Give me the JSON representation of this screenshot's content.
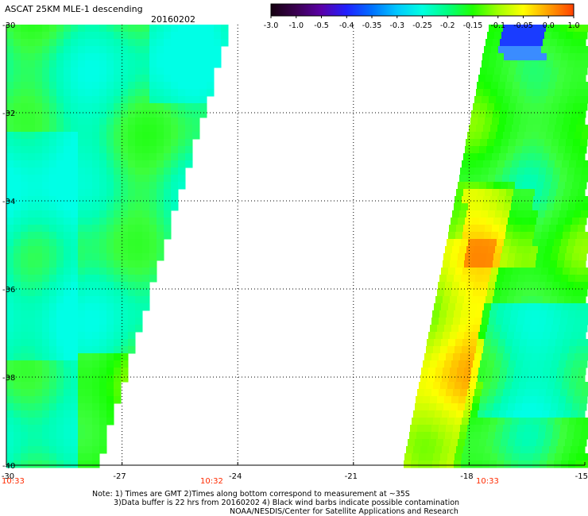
{
  "title": "ASCAT 25KM MLE-1 descending",
  "date": "20160202",
  "colorbar": {
    "labels": [
      "-3.0",
      "-1.0",
      "-0.5",
      "-0.4",
      "-0.35",
      "-0.3",
      "-0.25",
      "-0.2",
      "-0.15",
      "-0.1",
      "-0.05",
      "0.0",
      "1.0"
    ],
    "colors": [
      "#140010",
      "#3a0050",
      "#5a00a8",
      "#2020ff",
      "#0070ff",
      "#00c8ff",
      "#00ffe0",
      "#00ff80",
      "#20ff00",
      "#a0ff00",
      "#ffff00",
      "#ffa000",
      "#ff4000"
    ]
  },
  "map": {
    "lon_ticks": [
      "-30",
      "-27",
      "-24",
      "-21",
      "-18",
      "-15"
    ],
    "lat_ticks": [
      "-30",
      "-32",
      "-34",
      "-36",
      "-38",
      "-40"
    ],
    "lon_range": [
      -30,
      -15
    ],
    "lat_range": [
      -40,
      -30
    ],
    "grid": "dotted",
    "swaths": [
      {
        "name": "west",
        "time_left": "10:33",
        "time_right": "10:32"
      },
      {
        "name": "east",
        "time_right": "10:33"
      }
    ]
  },
  "notes": {
    "line1": "Note: 1) Times are GMT 2)Times along bottom correspond to measurement at ~35S",
    "line2": "3)Data buffer is 22 hrs from 20160202 4) Black wind barbs indicate possible contamination",
    "line3": "NOAA/NESDIS/Center for Satellite Applications and Research"
  }
}
